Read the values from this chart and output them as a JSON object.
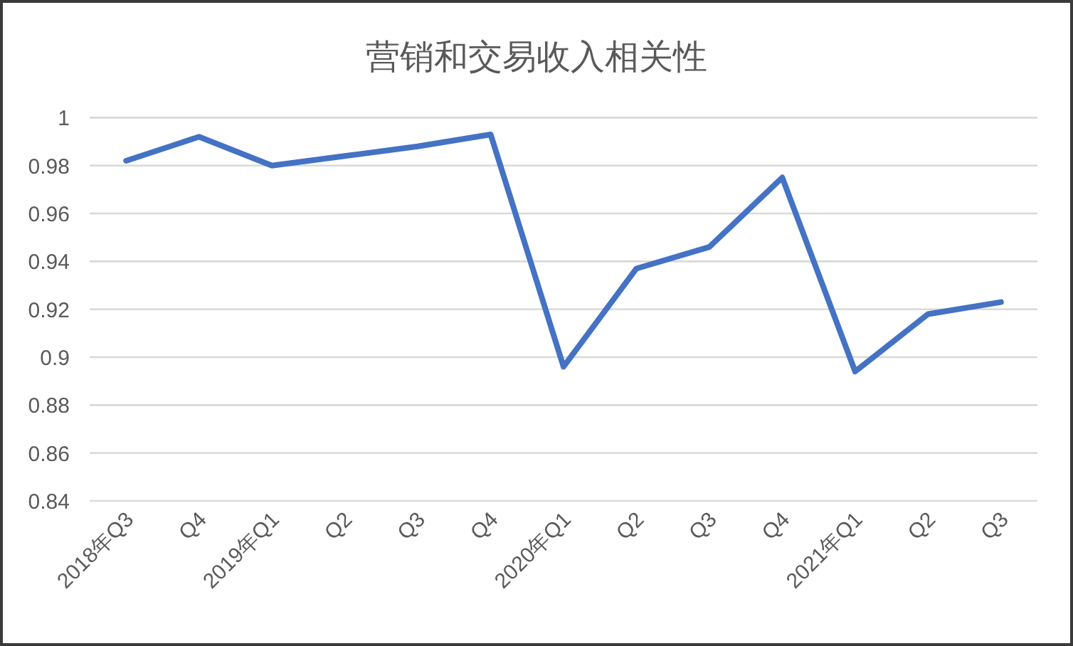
{
  "chart_data": {
    "type": "line",
    "title": "营销和交易收入相关性",
    "categories": [
      "2018年Q3",
      "Q4",
      "2019年Q1",
      "Q2",
      "Q3",
      "Q4",
      "2020年Q1",
      "Q2",
      "Q3",
      "Q4",
      "2021年Q1",
      "Q2",
      "Q3"
    ],
    "values": [
      0.982,
      0.992,
      0.98,
      0.984,
      0.988,
      0.993,
      0.896,
      0.937,
      0.946,
      0.975,
      0.894,
      0.918,
      0.923
    ],
    "color": "#4472c4",
    "line_style": "solid",
    "ylim": [
      0.84,
      1
    ],
    "yticks": [
      0.84,
      0.86,
      0.88,
      0.9,
      0.92,
      0.94,
      0.96,
      0.98,
      1
    ],
    "grid": "y"
  }
}
